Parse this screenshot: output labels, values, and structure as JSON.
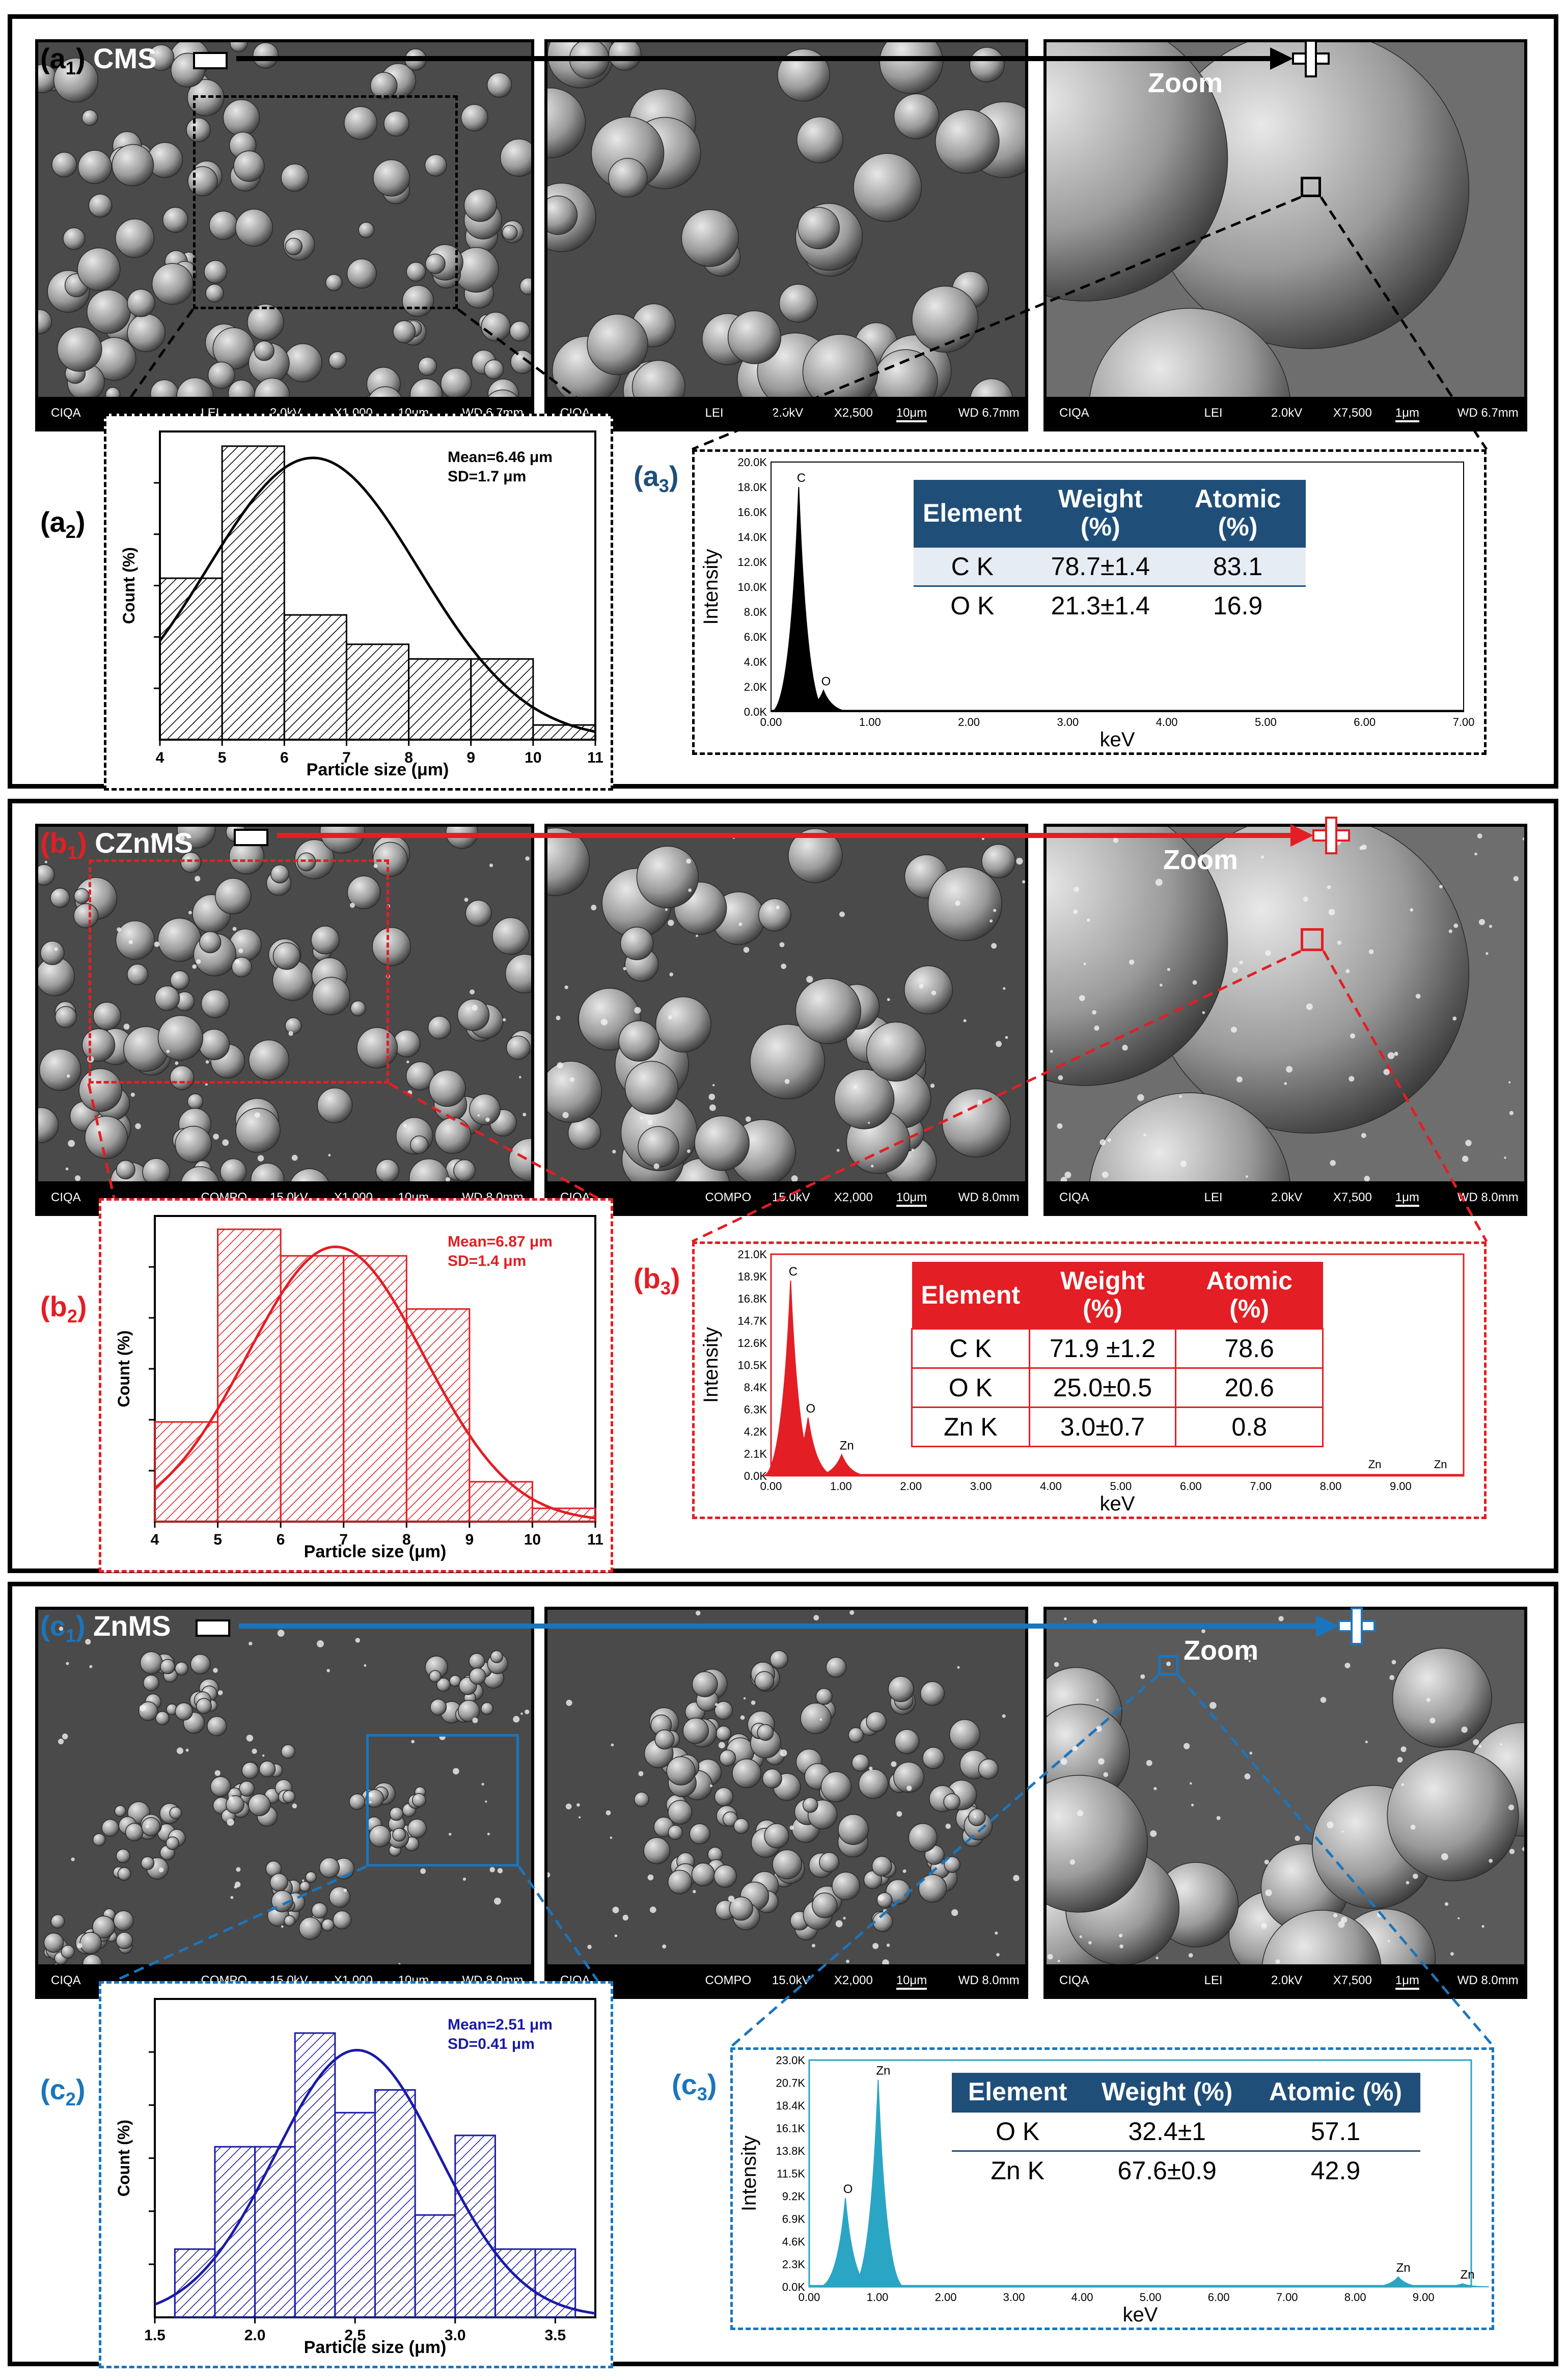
{
  "rows": [
    {
      "id": "a",
      "color": "#000000",
      "table_color": "#1f4e79",
      "label_main": "(a",
      "label_sub": "1",
      "label_end": ")",
      "sample": "CMS",
      "zoom_label": "Zoom",
      "sem_images": [
        {
          "databar": [
            "CIQA",
            "LEI",
            "2.0kV",
            "X1,000",
            "10μm",
            "WD 6.7mm"
          ]
        },
        {
          "databar": [
            "CIQA",
            "LEI",
            "2.0kV",
            "X2,500",
            "10μm",
            "WD 6.7mm"
          ]
        },
        {
          "databar": [
            "CIQA",
            "LEI",
            "2.0kV",
            "X7,500",
            "1μm",
            "WD 6.7mm"
          ]
        }
      ],
      "hist_label": {
        "main": "(a",
        "sub": "2",
        "end": ")"
      },
      "eds_label": {
        "main": "(a",
        "sub": "3",
        "end": ")"
      },
      "chart_data": {
        "type": "bar",
        "xlabel": "Particle size (μm)",
        "ylabel": "Count (%)",
        "xlim": [
          4,
          11
        ],
        "xticks": [
          4,
          5,
          6,
          7,
          8,
          9,
          10,
          11
        ],
        "bins": [
          [
            4,
            5
          ],
          [
            5,
            6
          ],
          [
            6,
            7
          ],
          [
            7,
            8
          ],
          [
            8,
            9
          ],
          [
            9,
            10
          ],
          [
            10,
            11
          ]
        ],
        "values": [
          11,
          20,
          8.5,
          6.5,
          5.5,
          5.5,
          1
        ],
        "ylim": [
          0,
          21
        ],
        "fit": {
          "type": "normal",
          "mean": 6.46,
          "sd": 1.7
        },
        "annotation": [
          "Mean=6.46 μm",
          "SD=1.7 μm"
        ]
      },
      "eds": {
        "type": "line",
        "xlabel": "keV",
        "ylabel": "Intensity",
        "xticks": [
          "0.00",
          "1.00",
          "2.00",
          "3.00",
          "4.00",
          "5.00",
          "6.00",
          "7.00"
        ],
        "xlim": [
          0,
          7
        ],
        "yticks": [
          "0.0K",
          "2.0K",
          "4.0K",
          "6.0K",
          "8.0K",
          "10.0K",
          "12.0K",
          "14.0K",
          "16.0K",
          "18.0K",
          "20.0K"
        ],
        "ylim": [
          0,
          20000
        ],
        "peaks": [
          {
            "x": 0.28,
            "y": 18000,
            "label": "C"
          },
          {
            "x": 0.53,
            "y": 1700,
            "label": "O"
          }
        ],
        "table": {
          "headers": [
            "Element",
            "Weight (%)",
            "Atomic (%)"
          ],
          "rows": [
            [
              "C K",
              "78.7±1.4",
              "83.1"
            ],
            [
              "O K",
              "21.3±1.4",
              "16.9"
            ]
          ]
        }
      }
    },
    {
      "id": "b",
      "color": "#e31e24",
      "table_color": "#e31e24",
      "label_main": "(b",
      "label_sub": "1",
      "label_end": ")",
      "sample": "CZnMS",
      "zoom_label": "Zoom",
      "sem_images": [
        {
          "databar": [
            "CIQA",
            "COMPO",
            "15.0kV",
            "X1,000",
            "10μm",
            "WD 8.0mm"
          ]
        },
        {
          "databar": [
            "CIQA",
            "COMPO",
            "15.0kV",
            "X2,000",
            "10μm",
            "WD 8.0mm"
          ]
        },
        {
          "databar": [
            "CIQA",
            "LEI",
            "2.0kV",
            "X7,500",
            "1μm",
            "WD 8.0mm"
          ]
        }
      ],
      "hist_label": {
        "main": "(b",
        "sub": "2",
        "end": ")"
      },
      "eds_label": {
        "main": "(b",
        "sub": "3",
        "end": ")"
      },
      "chart_data": {
        "type": "bar",
        "xlabel": "Particle size (μm)",
        "ylabel": "Count (%)",
        "xlim": [
          4,
          11
        ],
        "xticks": [
          4,
          5,
          6,
          7,
          8,
          9,
          10,
          11
        ],
        "bins": [
          [
            4,
            5
          ],
          [
            5,
            6
          ],
          [
            6,
            7
          ],
          [
            7,
            8
          ],
          [
            8,
            9
          ],
          [
            9,
            10
          ],
          [
            10,
            11
          ]
        ],
        "values": [
          7.5,
          22,
          20,
          20,
          16,
          3,
          1
        ],
        "ylim": [
          0,
          23
        ],
        "fit": {
          "type": "normal",
          "mean": 6.87,
          "sd": 1.4
        },
        "annotation": [
          "Mean=6.87 μm",
          "SD=1.4 μm"
        ]
      },
      "eds": {
        "type": "line",
        "xlabel": "keV",
        "ylabel": "Intensity",
        "xticks": [
          "0.00",
          "1.00",
          "2.00",
          "3.00",
          "4.00",
          "5.00",
          "6.00",
          "7.00",
          "8.00",
          "9.00"
        ],
        "xlim": [
          0,
          9.9
        ],
        "yticks": [
          "0.0K",
          "2.1K",
          "4.2K",
          "6.3K",
          "8.4K",
          "10.5K",
          "12.6K",
          "14.7K",
          "16.8K",
          "18.9K",
          "21.0K"
        ],
        "ylim": [
          0,
          21000
        ],
        "peaks": [
          {
            "x": 0.28,
            "y": 18500,
            "label": "C"
          },
          {
            "x": 0.53,
            "y": 5500,
            "label": "O"
          },
          {
            "x": 1.01,
            "y": 2000,
            "label": "Zn"
          }
        ],
        "extra_labels": [
          {
            "x": 8.63,
            "label": "Zn"
          },
          {
            "x": 9.57,
            "label": "Zn"
          }
        ],
        "table": {
          "headers": [
            "Element",
            "Weight (%)",
            "Atomic (%)"
          ],
          "rows": [
            [
              "C K",
              "71.9 ±1.2",
              "78.6"
            ],
            [
              "O K",
              "25.0±0.5",
              "20.6"
            ],
            [
              "Zn K",
              "3.0±0.7",
              "0.8"
            ]
          ]
        }
      }
    },
    {
      "id": "c",
      "color": "#1b75bc",
      "table_color": "#1f4e79",
      "label_main": "(c",
      "label_sub": "1",
      "label_end": ")",
      "sample": "ZnMS",
      "zoom_label": "Zoom",
      "sem_images": [
        {
          "databar": [
            "CIQA",
            "COMPO",
            "15.0kV",
            "X1,000",
            "10μm",
            "WD 8.0mm"
          ]
        },
        {
          "databar": [
            "CIQA",
            "COMPO",
            "15.0kV",
            "X2,000",
            "10μm",
            "WD 8.0mm"
          ]
        },
        {
          "databar": [
            "CIQA",
            "LEI",
            "2.0kV",
            "X7,500",
            "1μm",
            "WD 8.0mm"
          ]
        }
      ],
      "hist_label": {
        "main": "(c",
        "sub": "2",
        "end": ")"
      },
      "eds_label": {
        "main": "(c",
        "sub": "3",
        "end": ")"
      },
      "chart_data": {
        "type": "bar",
        "xlabel": "Particle size (μm)",
        "ylabel": "Count (%)",
        "xlim": [
          1.5,
          3.7
        ],
        "xticks": [
          1.5,
          2.0,
          2.5,
          3.0,
          3.5
        ],
        "xtick_labels": [
          "1.5",
          "2.0",
          "2.5",
          "3.0",
          "3.5"
        ],
        "bins": [
          [
            1.6,
            1.8
          ],
          [
            1.8,
            2.0
          ],
          [
            2.0,
            2.2
          ],
          [
            2.2,
            2.4
          ],
          [
            2.4,
            2.6
          ],
          [
            2.6,
            2.8
          ],
          [
            2.8,
            3.0
          ],
          [
            3.0,
            3.2
          ],
          [
            3.2,
            3.4
          ],
          [
            3.4,
            3.6
          ]
        ],
        "values": [
          3,
          7.5,
          7.5,
          12.5,
          9,
          10,
          4.5,
          8,
          3,
          3
        ],
        "ylim": [
          0,
          14
        ],
        "fit": {
          "type": "normal",
          "mean": 2.51,
          "sd": 0.41
        },
        "annotation": [
          "Mean=2.51 μm",
          "SD=0.41 μm"
        ]
      },
      "eds": {
        "type": "line",
        "xlabel": "keV",
        "ylabel": "Intensity",
        "xticks": [
          "0.00",
          "1.00",
          "2.00",
          "3.00",
          "4.00",
          "5.00",
          "6.00",
          "7.00",
          "8.00",
          "9.00"
        ],
        "xlim": [
          0,
          9.7
        ],
        "yticks": [
          "0.0K",
          "2.3K",
          "4.6K",
          "6.9K",
          "9.2K",
          "11.5K",
          "13.8K",
          "16.1K",
          "18.4K",
          "20.7K",
          "23.0K"
        ],
        "ylim": [
          0,
          23000
        ],
        "peaks": [
          {
            "x": 0.53,
            "y": 9000,
            "label": "O"
          },
          {
            "x": 1.01,
            "y": 21000,
            "label": "Zn"
          },
          {
            "x": 8.63,
            "y": 1000,
            "label": "Zn"
          },
          {
            "x": 9.57,
            "y": 300,
            "label": "Zn"
          }
        ],
        "table": {
          "headers": [
            "Element",
            "Weight (%)",
            "Atomic (%)"
          ],
          "rows": [
            [
              "O K",
              "32.4±1",
              "57.1"
            ],
            [
              "Zn K",
              "67.6±0.9",
              "42.9"
            ]
          ]
        }
      }
    }
  ]
}
